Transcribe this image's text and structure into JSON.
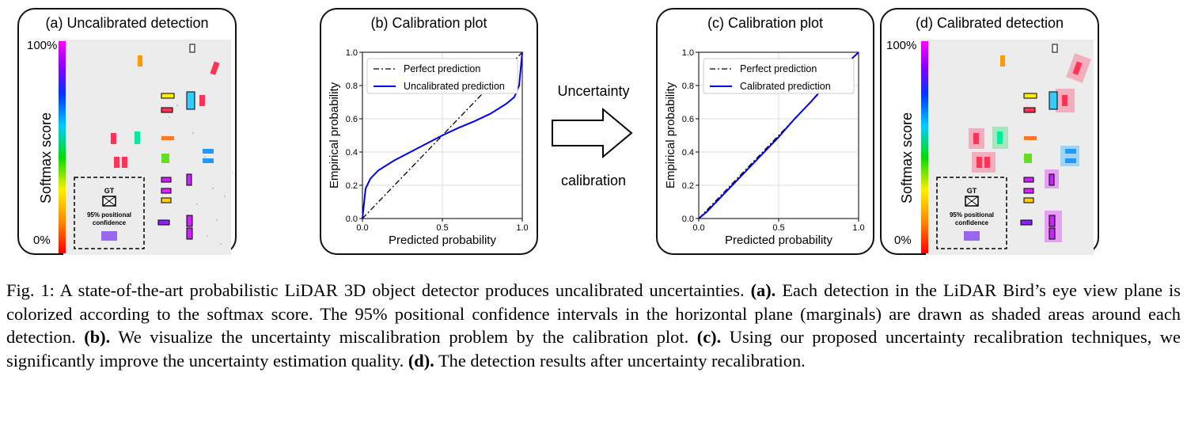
{
  "panels": {
    "a": {
      "title": "(a) Uncalibrated detection"
    },
    "b": {
      "title": "(b) Calibration plot"
    },
    "c": {
      "title": "(c) Calibration plot"
    },
    "d": {
      "title": "(d) Calibrated detection"
    }
  },
  "colorbar": {
    "label": "Softmax score",
    "top_tick": "100%",
    "bottom_tick": "0%",
    "stops": [
      "#ff0000",
      "#ff8800",
      "#ffee00",
      "#00dd00",
      "#00ccff",
      "#0033ff",
      "#8800ff",
      "#ff00ff"
    ]
  },
  "legend_box": {
    "gt_label": "GT",
    "confidence_label_line1": "95% positional",
    "confidence_label_line2": "confidence"
  },
  "arrow": {
    "top_text": "Uncertainty",
    "bottom_text": "calibration"
  },
  "chart_data": [
    {
      "type": "line",
      "title": "(b) Calibration plot",
      "xlabel": "Predicted probability",
      "ylabel": "Empirical probability",
      "xlim": [
        0,
        1
      ],
      "ylim": [
        0,
        1
      ],
      "xticks": [
        "0.0",
        "0.5",
        "1.0"
      ],
      "yticks": [
        "0.0",
        "0.2",
        "0.4",
        "0.6",
        "0.8",
        "1.0"
      ],
      "grid": true,
      "legend_position": "top",
      "series": [
        {
          "name": "Perfect prediction",
          "style": "dashdot",
          "color": "#000000",
          "x": [
            0,
            1
          ],
          "y": [
            0,
            1
          ]
        },
        {
          "name": "Uncalibrated prediction",
          "style": "solid",
          "color": "#0000ee",
          "x": [
            0,
            0.02,
            0.05,
            0.1,
            0.2,
            0.3,
            0.4,
            0.5,
            0.6,
            0.7,
            0.8,
            0.9,
            0.95,
            0.98,
            0.99,
            1.0
          ],
          "y": [
            0,
            0.18,
            0.24,
            0.29,
            0.35,
            0.4,
            0.45,
            0.5,
            0.545,
            0.585,
            0.63,
            0.69,
            0.73,
            0.8,
            0.9,
            1.0
          ]
        }
      ]
    },
    {
      "type": "line",
      "title": "(c) Calibration plot",
      "xlabel": "Predicted probability",
      "ylabel": "Empirical probability",
      "xlim": [
        0,
        1
      ],
      "ylim": [
        0,
        1
      ],
      "xticks": [
        "0.0",
        "0.5",
        "1.0"
      ],
      "yticks": [
        "0.0",
        "0.2",
        "0.4",
        "0.6",
        "0.8",
        "1.0"
      ],
      "grid": true,
      "legend_position": "top",
      "series": [
        {
          "name": "Perfect prediction",
          "style": "dashdot",
          "color": "#000000",
          "x": [
            0,
            1
          ],
          "y": [
            0,
            1
          ]
        },
        {
          "name": "Calibrated prediction",
          "style": "solid",
          "color": "#0000ee",
          "x": [
            0,
            0.05,
            0.1,
            0.2,
            0.3,
            0.4,
            0.5,
            0.6,
            0.7,
            0.8,
            0.9,
            1.0
          ],
          "y": [
            0,
            0.04,
            0.09,
            0.19,
            0.29,
            0.39,
            0.49,
            0.6,
            0.7,
            0.81,
            0.91,
            1.0
          ]
        }
      ]
    }
  ],
  "caption": {
    "part1": "Fig. 1: A state-of-the-art probabilistic LiDAR 3D object detector produces uncalibrated uncertainties. ",
    "a_ref": "(a).",
    "part2": " Each detection in the LiDAR Bird’s eye view plane is colorized according to the softmax score. The 95% positional confidence intervals in the horizontal plane (marginals) are drawn as shaded areas around each detection. ",
    "b_ref": "(b).",
    "part3": " We visualize the uncertainty miscalibration problem by the calibration plot. ",
    "c_ref": "(c).",
    "part4": " Using our proposed uncertainty recalibration techniques, we significantly improve the uncertainty estimation quality. ",
    "d_ref": "(d).",
    "part5": " The detection results after uncertainty recalibration."
  }
}
